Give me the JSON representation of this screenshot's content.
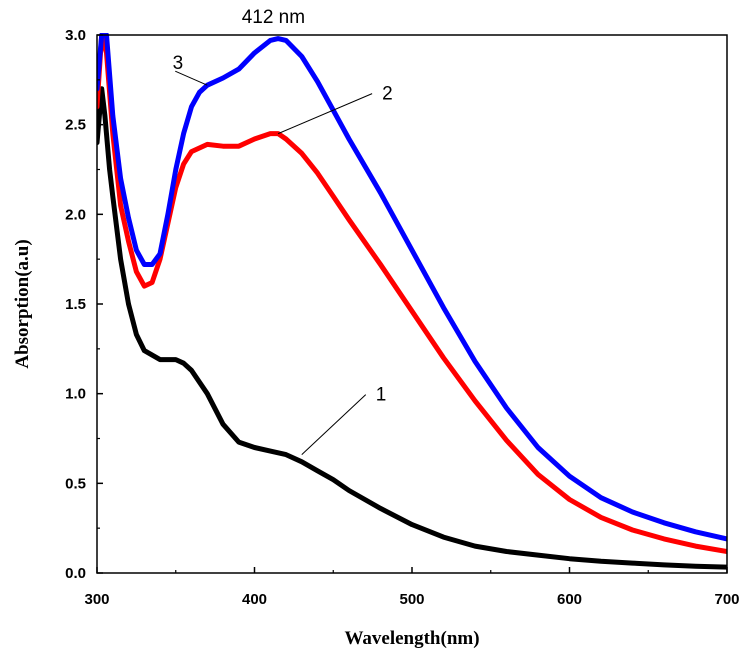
{
  "chart_data": {
    "type": "line",
    "title": "",
    "xlabel": "Wavelength(nm)",
    "ylabel": "Absorption(a.u)",
    "xlim": [
      300,
      700
    ],
    "ylim": [
      0,
      3.0
    ],
    "xticks": [
      300,
      400,
      500,
      600,
      700
    ],
    "xtick_labels": [
      "300",
      "400",
      "500",
      "600",
      "700"
    ],
    "yticks": [
      0.0,
      0.5,
      1.0,
      1.5,
      2.0,
      2.5,
      3.0
    ],
    "ytick_labels": [
      "0.0",
      "0.5",
      "1.0",
      "1.5",
      "2.0",
      "2.5",
      "3.0"
    ],
    "grid": false,
    "peak_annotation": {
      "text": "412 nm",
      "x": 412,
      "y": 3.0
    },
    "series": [
      {
        "name": "1",
        "color": "#000000",
        "x": [
          300,
          303,
          305,
          308,
          310,
          315,
          320,
          325,
          330,
          340,
          350,
          355,
          360,
          370,
          380,
          390,
          400,
          410,
          420,
          430,
          440,
          450,
          460,
          480,
          500,
          520,
          540,
          560,
          580,
          600,
          620,
          640,
          660,
          680,
          700
        ],
        "y": [
          2.4,
          2.7,
          2.55,
          2.25,
          2.1,
          1.75,
          1.5,
          1.33,
          1.24,
          1.19,
          1.19,
          1.17,
          1.13,
          1.0,
          0.83,
          0.73,
          0.7,
          0.68,
          0.66,
          0.62,
          0.57,
          0.52,
          0.46,
          0.36,
          0.27,
          0.2,
          0.15,
          0.12,
          0.1,
          0.08,
          0.065,
          0.055,
          0.045,
          0.038,
          0.033
        ]
      },
      {
        "name": "2",
        "color": "#ff0000",
        "x": [
          300,
          303,
          306,
          310,
          315,
          320,
          325,
          330,
          335,
          340,
          345,
          350,
          355,
          360,
          370,
          380,
          390,
          400,
          410,
          415,
          420,
          430,
          440,
          450,
          460,
          480,
          500,
          520,
          540,
          560,
          580,
          600,
          620,
          640,
          660,
          680,
          700
        ],
        "y": [
          2.6,
          3.0,
          2.9,
          2.45,
          2.05,
          1.85,
          1.68,
          1.6,
          1.62,
          1.75,
          1.95,
          2.15,
          2.28,
          2.35,
          2.39,
          2.38,
          2.38,
          2.42,
          2.45,
          2.45,
          2.42,
          2.34,
          2.23,
          2.1,
          1.97,
          1.72,
          1.46,
          1.2,
          0.96,
          0.74,
          0.55,
          0.41,
          0.31,
          0.24,
          0.19,
          0.15,
          0.12
        ]
      },
      {
        "name": "3",
        "color": "#0000ff",
        "x": [
          300,
          303,
          306,
          310,
          315,
          320,
          325,
          330,
          335,
          340,
          345,
          350,
          355,
          360,
          365,
          370,
          380,
          390,
          400,
          410,
          415,
          420,
          430,
          440,
          450,
          460,
          480,
          500,
          520,
          540,
          560,
          580,
          600,
          620,
          640,
          660,
          680,
          700
        ],
        "y": [
          2.7,
          3.0,
          3.0,
          2.55,
          2.2,
          1.98,
          1.8,
          1.72,
          1.72,
          1.78,
          2.0,
          2.25,
          2.45,
          2.6,
          2.68,
          2.72,
          2.76,
          2.81,
          2.9,
          2.97,
          2.98,
          2.97,
          2.88,
          2.74,
          2.58,
          2.42,
          2.12,
          1.8,
          1.48,
          1.18,
          0.92,
          0.7,
          0.54,
          0.42,
          0.34,
          0.28,
          0.23,
          0.19
        ]
      }
    ],
    "curve_labels": [
      {
        "text": "1",
        "series": "1",
        "x": 430,
        "y": 0.66
      },
      {
        "text": "2",
        "series": "2",
        "x": 415,
        "y": 2.45
      },
      {
        "text": "3",
        "series": "3",
        "x": 370,
        "y": 2.72
      }
    ]
  }
}
